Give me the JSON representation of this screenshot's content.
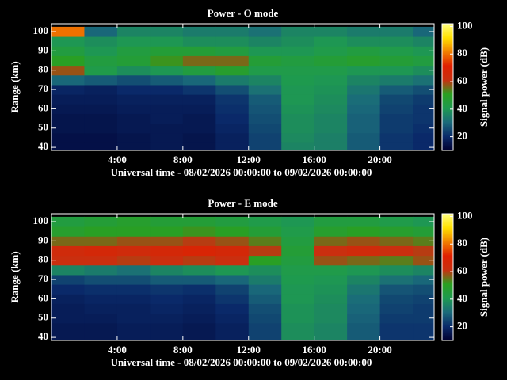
{
  "chart_data": [
    {
      "type": "heatmap",
      "title": "Power - O mode",
      "xlabel": "Universal time - 08/02/2026 00:00:00 to 09/02/2026 00:00:00",
      "ylabel": "Range (km)",
      "colorbar_label": "Signal power (dB)",
      "x": [
        1,
        3,
        5,
        7,
        9,
        11,
        13,
        15,
        17,
        19,
        21,
        23
      ],
      "y": [
        40,
        45,
        50,
        55,
        60,
        65,
        70,
        75,
        80,
        85,
        90,
        95,
        100
      ],
      "z": [
        [
          14,
          14,
          15,
          16,
          15,
          18,
          24,
          36,
          35,
          28,
          22,
          20
        ],
        [
          14,
          14,
          15,
          16,
          15,
          18,
          24,
          37,
          35,
          28,
          22,
          20
        ],
        [
          15,
          15,
          16,
          16,
          16,
          19,
          25,
          38,
          36,
          29,
          23,
          21
        ],
        [
          15,
          15,
          16,
          17,
          16,
          20,
          26,
          38,
          36,
          29,
          23,
          22
        ],
        [
          16,
          16,
          17,
          17,
          17,
          21,
          27,
          39,
          37,
          30,
          24,
          22
        ],
        [
          17,
          17,
          18,
          18,
          18,
          22,
          28,
          40,
          38,
          31,
          25,
          23
        ],
        [
          19,
          18,
          20,
          20,
          22,
          26,
          32,
          40,
          39,
          33,
          28,
          26
        ],
        [
          30,
          28,
          26,
          28,
          30,
          34,
          36,
          41,
          40,
          36,
          34,
          32
        ],
        [
          58,
          42,
          38,
          40,
          44,
          48,
          42,
          42,
          42,
          40,
          40,
          38
        ],
        [
          50,
          44,
          46,
          52,
          56,
          56,
          46,
          44,
          46,
          48,
          46,
          44
        ],
        [
          44,
          40,
          44,
          46,
          46,
          44,
          40,
          40,
          42,
          44,
          42,
          40
        ],
        [
          40,
          38,
          40,
          40,
          38,
          38,
          36,
          38,
          40,
          38,
          38,
          36
        ],
        [
          80,
          30,
          36,
          36,
          34,
          34,
          32,
          36,
          36,
          34,
          34,
          30
        ]
      ],
      "xlim": [
        0,
        23.3
      ],
      "ylim": [
        38.4,
        104.1
      ],
      "xticks": [
        {
          "value": 4,
          "label": "4:00"
        },
        {
          "value": 8,
          "label": "8:00"
        },
        {
          "value": 12,
          "label": "12:00"
        },
        {
          "value": 16,
          "label": "16:00"
        },
        {
          "value": 20,
          "label": "20:00"
        }
      ],
      "yticks": [
        40,
        50,
        60,
        70,
        80,
        90,
        100
      ],
      "clim": [
        10,
        102
      ],
      "cticks": [
        20,
        40,
        60,
        80,
        100
      ],
      "colormap": [
        "#000030",
        "#0a2a6a",
        "#1a6a7a",
        "#1e9a50",
        "#2aa020",
        "#c83010",
        "#e02000",
        "#f08000",
        "#ffe000",
        "#ffff80"
      ]
    },
    {
      "type": "heatmap",
      "title": "Power - E mode",
      "xlabel": "Universal time - 08/02/2026 00:00:00 to 09/02/2026 00:00:00",
      "ylabel": "Range (km)",
      "colorbar_label": "Signal power (dB)",
      "x": [
        1,
        3,
        5,
        7,
        9,
        11,
        13,
        15,
        17,
        19,
        21,
        23
      ],
      "y": [
        40,
        45,
        50,
        55,
        60,
        65,
        70,
        75,
        80,
        85,
        90,
        95,
        100
      ],
      "z": [
        [
          16,
          16,
          17,
          17,
          16,
          18,
          24,
          38,
          36,
          28,
          22,
          22
        ],
        [
          16,
          16,
          17,
          17,
          16,
          18,
          24,
          38,
          36,
          28,
          22,
          22
        ],
        [
          17,
          17,
          18,
          18,
          17,
          19,
          25,
          39,
          37,
          29,
          23,
          23
        ],
        [
          17,
          18,
          18,
          19,
          18,
          20,
          26,
          39,
          37,
          30,
          24,
          23
        ],
        [
          18,
          19,
          19,
          20,
          19,
          22,
          28,
          40,
          38,
          31,
          25,
          24
        ],
        [
          20,
          21,
          21,
          22,
          21,
          24,
          30,
          40,
          39,
          33,
          27,
          26
        ],
        [
          24,
          26,
          26,
          28,
          28,
          30,
          34,
          41,
          40,
          36,
          32,
          30
        ],
        [
          36,
          34,
          32,
          36,
          38,
          40,
          38,
          42,
          42,
          40,
          38,
          36
        ],
        [
          62,
          62,
          60,
          62,
          60,
          62,
          50,
          44,
          58,
          56,
          54,
          58
        ],
        [
          64,
          66,
          64,
          66,
          68,
          66,
          60,
          46,
          62,
          64,
          62,
          60
        ],
        [
          56,
          56,
          58,
          58,
          60,
          58,
          54,
          44,
          56,
          58,
          56,
          54
        ],
        [
          48,
          50,
          50,
          50,
          52,
          50,
          46,
          42,
          48,
          50,
          48,
          46
        ],
        [
          44,
          46,
          48,
          46,
          46,
          44,
          42,
          40,
          44,
          44,
          42,
          40
        ]
      ],
      "xlim": [
        0,
        23.3
      ],
      "ylim": [
        38.4,
        104.1
      ],
      "xticks": [
        {
          "value": 4,
          "label": "4:00"
        },
        {
          "value": 8,
          "label": "8:00"
        },
        {
          "value": 12,
          "label": "12:00"
        },
        {
          "value": 16,
          "label": "16:00"
        },
        {
          "value": 20,
          "label": "20:00"
        }
      ],
      "yticks": [
        40,
        50,
        60,
        70,
        80,
        90,
        100
      ],
      "clim": [
        10,
        102
      ],
      "cticks": [
        20,
        40,
        60,
        80,
        100
      ],
      "colormap": [
        "#000030",
        "#0a2a6a",
        "#1a6a7a",
        "#1e9a50",
        "#2aa020",
        "#c83010",
        "#e02000",
        "#f08000",
        "#ffe000",
        "#ffff80"
      ]
    }
  ]
}
